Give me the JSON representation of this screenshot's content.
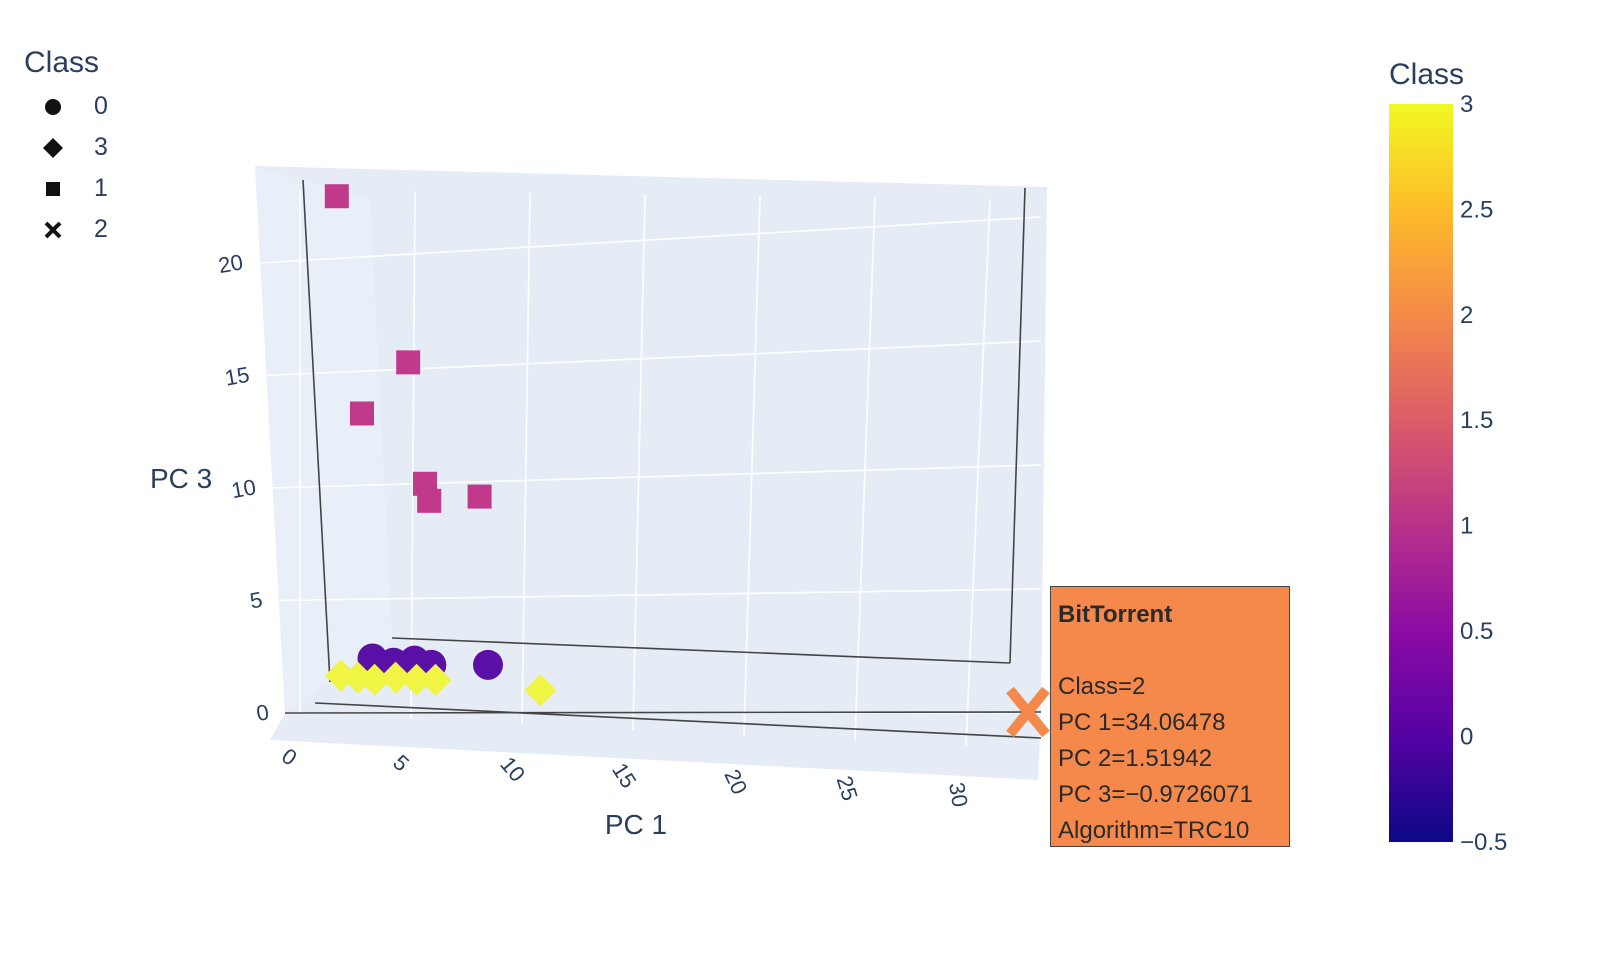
{
  "chart_data": {
    "type": "scatter3d",
    "axes": {
      "x": {
        "label": "PC 1",
        "ticks": [
          0,
          5,
          10,
          15,
          20,
          25,
          30
        ]
      },
      "z": {
        "label": "PC 3",
        "ticks": [
          0,
          5,
          10,
          15,
          20
        ]
      }
    },
    "legend": {
      "title": "Class",
      "entries": [
        {
          "label": "0",
          "symbol": "circle"
        },
        {
          "label": "3",
          "symbol": "diamond"
        },
        {
          "label": "1",
          "symbol": "square"
        },
        {
          "label": "2",
          "symbol": "x"
        }
      ]
    },
    "colorbar": {
      "title": "Class",
      "range": [
        -0.5,
        3
      ],
      "ticks": [
        "3",
        "2.5",
        "2",
        "1.5",
        "1",
        "0.5",
        "0",
        "−0.5"
      ],
      "colors": [
        "#0d0887",
        "#5302a3",
        "#8b0aa5",
        "#b83289",
        "#db5c68",
        "#f48849",
        "#febd2a",
        "#f0f921"
      ]
    },
    "points": [
      {
        "class": 1,
        "symbol": "square",
        "color": "#c0398a",
        "pc1": 0.8,
        "pc3": 22.9
      },
      {
        "class": 1,
        "symbol": "square",
        "color": "#c0398a",
        "pc1": 4.2,
        "pc3": 15.1
      },
      {
        "class": 1,
        "symbol": "square",
        "color": "#c0398a",
        "pc1": 2.0,
        "pc3": 12.7
      },
      {
        "class": 1,
        "symbol": "square",
        "color": "#c0398a",
        "pc1": 5.0,
        "pc3": 9.4
      },
      {
        "class": 1,
        "symbol": "square",
        "color": "#c0398a",
        "pc1": 5.2,
        "pc3": 8.6
      },
      {
        "class": 1,
        "symbol": "square",
        "color": "#c0398a",
        "pc1": 7.6,
        "pc3": 8.8
      },
      {
        "class": 0,
        "symbol": "circle",
        "color": "#5a0fa6",
        "pc1": 2.5,
        "pc3": 1.2
      },
      {
        "class": 0,
        "symbol": "circle",
        "color": "#5a0fa6",
        "pc1": 3.5,
        "pc3": 1.0
      },
      {
        "class": 0,
        "symbol": "circle",
        "color": "#5a0fa6",
        "pc1": 4.5,
        "pc3": 1.1
      },
      {
        "class": 0,
        "symbol": "circle",
        "color": "#5a0fa6",
        "pc1": 5.3,
        "pc3": 0.9
      },
      {
        "class": 0,
        "symbol": "circle",
        "color": "#5a0fa6",
        "pc1": 8.0,
        "pc3": 0.9
      },
      {
        "class": 3,
        "symbol": "diamond",
        "color": "#eff542",
        "pc1": 1.0,
        "pc3": 0.4
      },
      {
        "class": 3,
        "symbol": "diamond",
        "color": "#eff542",
        "pc1": 1.8,
        "pc3": 0.3
      },
      {
        "class": 3,
        "symbol": "diamond",
        "color": "#eff542",
        "pc1": 2.6,
        "pc3": 0.2
      },
      {
        "class": 3,
        "symbol": "diamond",
        "color": "#eff542",
        "pc1": 3.6,
        "pc3": 0.3
      },
      {
        "class": 3,
        "symbol": "diamond",
        "color": "#eff542",
        "pc1": 4.6,
        "pc3": 0.2
      },
      {
        "class": 3,
        "symbol": "diamond",
        "color": "#eff542",
        "pc1": 5.5,
        "pc3": 0.2
      },
      {
        "class": 3,
        "symbol": "diamond",
        "color": "#eff542",
        "pc1": 10.5,
        "pc3": -0.3
      },
      {
        "class": 2,
        "symbol": "x",
        "color": "#f5894c",
        "pc1": 34.06478,
        "pc3": -0.9726071
      }
    ],
    "hover": {
      "title": "BitTorrent",
      "lines": [
        "Class=2",
        "PC 1=34.06478",
        "PC 2=1.51942",
        "PC 3=−0.9726071",
        "Algorithm=TRC10"
      ]
    }
  }
}
